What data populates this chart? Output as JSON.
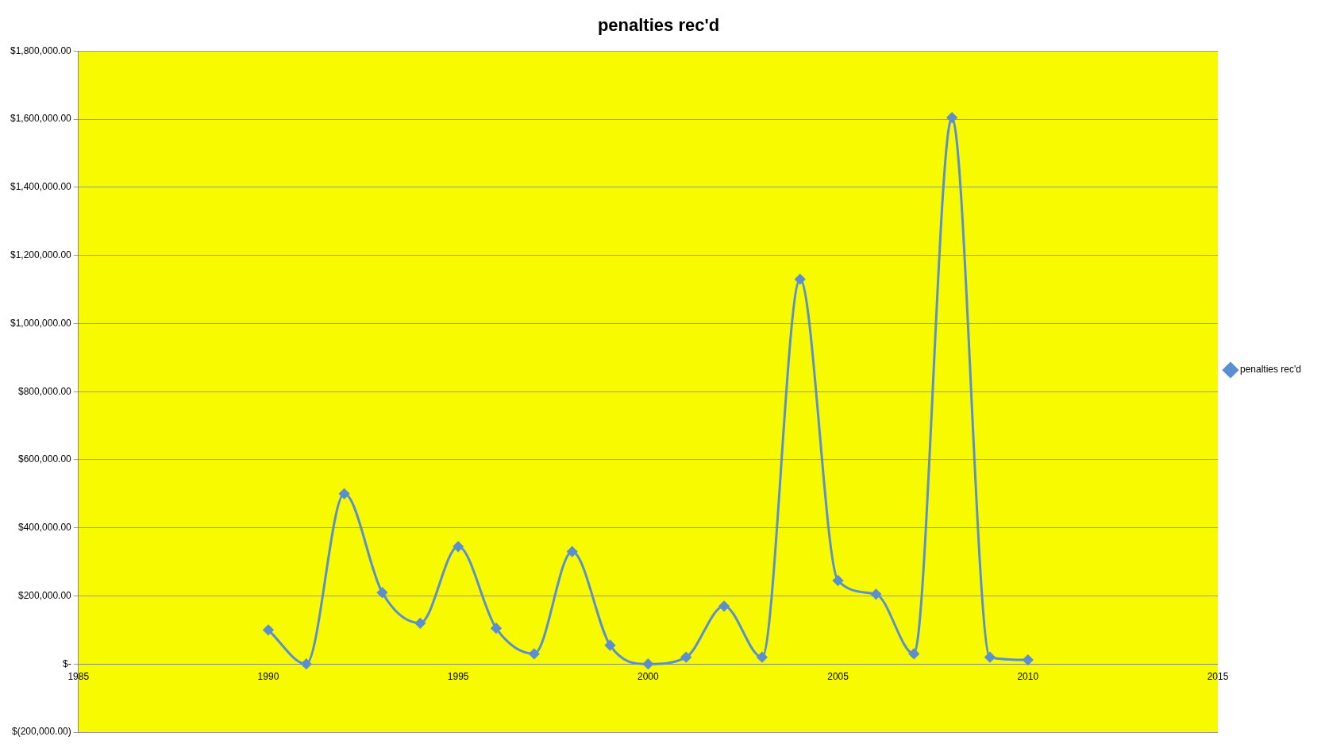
{
  "chart_data": {
    "type": "line",
    "title": "penalties rec'd",
    "x": [
      1990,
      1991,
      1992,
      1993,
      1994,
      1995,
      1996,
      1997,
      1998,
      1999,
      2000,
      2001,
      2002,
      2003,
      2004,
      2005,
      2006,
      2007,
      2008,
      2009,
      2010
    ],
    "series": [
      {
        "name": "penalties rec'd",
        "color": "#5b8fd0",
        "values": [
          100000,
          0,
          500000,
          210000,
          120000,
          345000,
          105000,
          30000,
          330000,
          55000,
          0,
          20000,
          170000,
          20000,
          1130000,
          245000,
          205000,
          30000,
          1605000,
          20000,
          12000
        ]
      }
    ],
    "xlim": [
      1985,
      2015
    ],
    "xticks": [
      1985,
      1990,
      1995,
      2000,
      2005,
      2010,
      2015
    ],
    "ylim": [
      -200000,
      1800000
    ],
    "yticks": [
      {
        "value": -200000,
        "label": "$(200,000.00)"
      },
      {
        "value": 0,
        "label": "$-"
      },
      {
        "value": 200000,
        "label": "$200,000.00"
      },
      {
        "value": 400000,
        "label": "$400,000.00"
      },
      {
        "value": 600000,
        "label": "$600,000.00"
      },
      {
        "value": 800000,
        "label": "$800,000.00"
      },
      {
        "value": 1000000,
        "label": "$1,000,000.00"
      },
      {
        "value": 1200000,
        "label": "$1,200,000.00"
      },
      {
        "value": 1400000,
        "label": "$1,400,000.00"
      },
      {
        "value": 1600000,
        "label": "$1,600,000.00"
      },
      {
        "value": 1800000,
        "label": "$1,800,000.00"
      }
    ],
    "grid": "y",
    "legend": "right",
    "marker": "diamond",
    "line_style": "solid"
  }
}
